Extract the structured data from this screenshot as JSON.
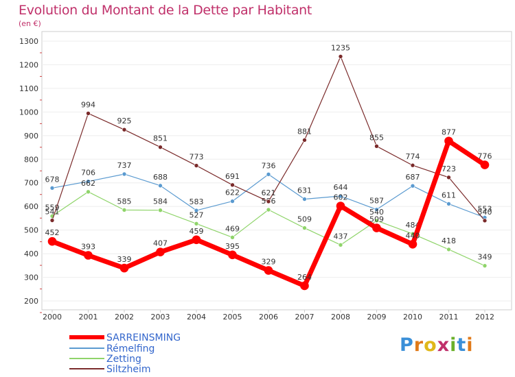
{
  "header": {
    "title": "Evolution du Montant de la Dette par Habitant",
    "subtitle": "(en €)"
  },
  "logo": {
    "text": "Proxiti",
    "letters": [
      "P",
      "r",
      "o",
      "x",
      "i",
      "t",
      "i"
    ]
  },
  "chart_data": {
    "type": "line",
    "x": [
      "2000",
      "2001",
      "2002",
      "2003",
      "2004",
      "2005",
      "2006",
      "2007",
      "2008",
      "2009",
      "2010",
      "2011",
      "2012"
    ],
    "yticks": [
      "200",
      "300",
      "400",
      "500",
      "600",
      "700",
      "800",
      "900",
      "1000",
      "1100",
      "1200",
      "1300"
    ],
    "ylim": [
      200,
      1300
    ],
    "legend_position": "bottom-left",
    "series": [
      {
        "name": "SARREINSMING",
        "color": "#ff0000",
        "width": 7,
        "values": [
          452,
          393,
          339,
          407,
          459,
          395,
          329,
          264,
          602,
          509,
          440,
          877,
          776
        ],
        "labels": [
          "452",
          "393",
          "339",
          "407",
          "459",
          "395",
          "329",
          "264",
          "602",
          "509",
          "440",
          "877",
          "776"
        ]
      },
      {
        "name": "Rémelfing",
        "color": "#5a9ad0",
        "width": 1.2,
        "values": [
          678,
          706,
          737,
          688,
          583,
          622,
          736,
          631,
          644,
          587,
          687,
          611,
          553
        ],
        "labels": [
          "678",
          "706",
          "737",
          "688",
          "583",
          "622",
          "736",
          "631",
          "644",
          "587",
          "687",
          "611",
          "553"
        ]
      },
      {
        "name": "Zetting",
        "color": "#8fd46a",
        "width": 1.2,
        "values": [
          559,
          662,
          585,
          584,
          527,
          469,
          586,
          509,
          437,
          540,
          484,
          418,
          349
        ],
        "labels": [
          "559",
          "662",
          "585",
          "584",
          "527",
          "469",
          "586",
          "509",
          "437",
          "540",
          "484",
          "418",
          "349"
        ]
      },
      {
        "name": "Siltzheim",
        "color": "#7a2a2a",
        "width": 1.2,
        "values": [
          541,
          994,
          925,
          851,
          773,
          691,
          621,
          881,
          1235,
          855,
          774,
          723,
          540
        ],
        "labels": [
          "541",
          "994",
          "925",
          "851",
          "773",
          "691",
          "621",
          "881",
          "1235",
          "855",
          "774",
          "723",
          "540"
        ]
      }
    ]
  }
}
